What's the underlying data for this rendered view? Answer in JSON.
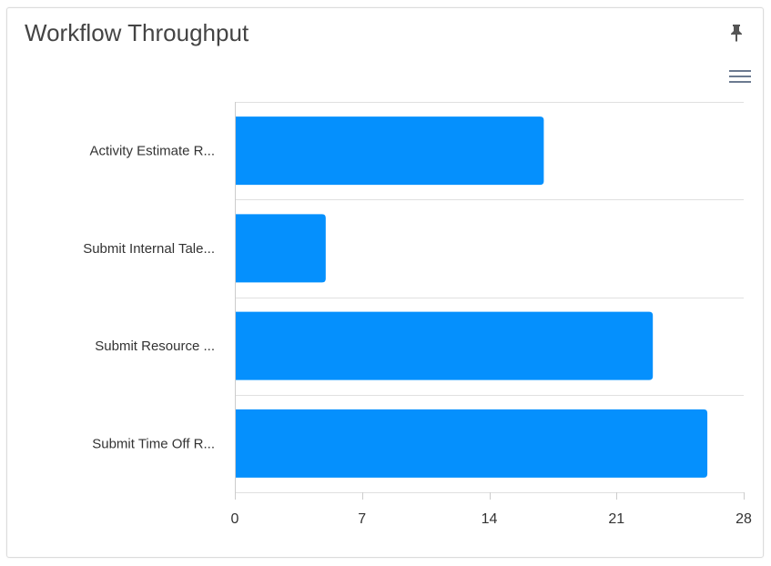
{
  "widget": {
    "title": "Workflow Throughput",
    "pin_icon": "pin-icon",
    "menu_icon": "hamburger-menu-icon"
  },
  "colors": {
    "bar": "#0590fd",
    "grid": "#e0e0e0",
    "axis": "#cccccc",
    "icon": "#555555",
    "menu_icon": "#6b7a90"
  },
  "chart_data": {
    "type": "bar",
    "orientation": "horizontal",
    "title": "",
    "xlabel": "",
    "ylabel": "",
    "categories": [
      "Activity Estimate R...",
      "Submit Internal Tale...",
      "Submit Resource ...",
      "Submit Time Off R..."
    ],
    "values": [
      17,
      5,
      23,
      26
    ],
    "xlim": [
      0,
      28
    ],
    "ticks": [
      "0",
      "7",
      "14",
      "21",
      "28"
    ],
    "grid": true,
    "legend": false
  }
}
